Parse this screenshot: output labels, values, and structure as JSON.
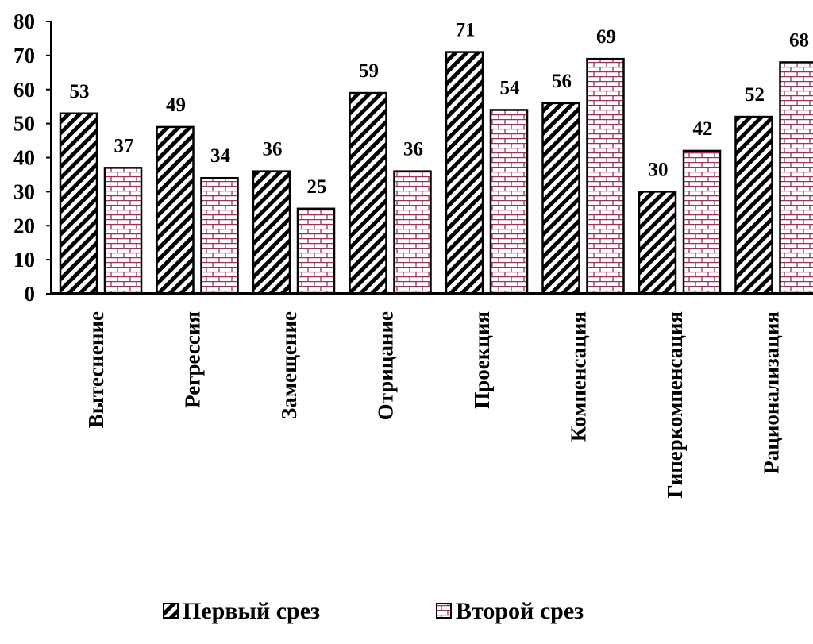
{
  "colors": {
    "series1_fg": "#000000",
    "series1_bg": "#ffffff",
    "series2_brick": "#a0305a",
    "series2_bg": "#ffffff",
    "axis": "#000000",
    "text": "#000000"
  },
  "chart_data": {
    "type": "bar",
    "title": "",
    "xlabel": "",
    "ylabel": "",
    "ylim": [
      0,
      80
    ],
    "yticks": [
      0,
      10,
      20,
      30,
      40,
      50,
      60,
      70,
      80
    ],
    "grid": false,
    "legend_position": "bottom",
    "categories": [
      "Вытеснение",
      "Регрессия",
      "Замещение",
      "Отрицание",
      "Проекция",
      "Компенсация",
      "Гиперкомпенсация",
      "Рационализация"
    ],
    "series": [
      {
        "name": "Первый срез",
        "pattern": "diagonal-stripes",
        "values": [
          53,
          49,
          36,
          59,
          71,
          56,
          30,
          52
        ]
      },
      {
        "name": "Второй срез",
        "pattern": "brick",
        "values": [
          37,
          34,
          25,
          36,
          54,
          69,
          42,
          68
        ]
      }
    ]
  }
}
